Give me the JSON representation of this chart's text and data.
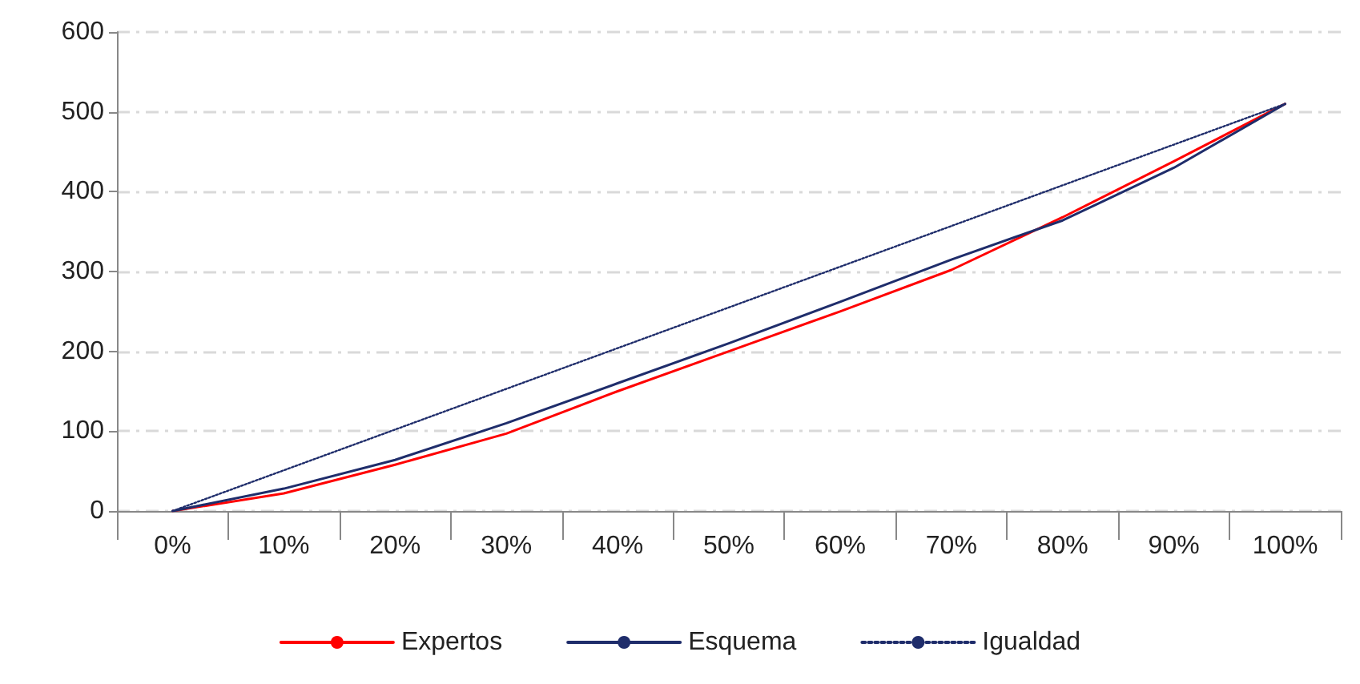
{
  "chart_data": {
    "type": "line",
    "categories": [
      "0%",
      "10%",
      "20%",
      "30%",
      "40%",
      "50%",
      "60%",
      "70%",
      "80%",
      "90%",
      "100%"
    ],
    "series": [
      {
        "name": "Expertos",
        "color": "#ff0000",
        "line_style": "solid",
        "values": [
          0,
          22,
          58,
          97,
          150,
          200,
          250,
          302,
          368,
          438,
          510
        ]
      },
      {
        "name": "Esquema",
        "color": "#1f2d6b",
        "line_style": "solid",
        "values": [
          0,
          28,
          64,
          110,
          160,
          210,
          262,
          315,
          364,
          430,
          510
        ]
      },
      {
        "name": "Igualdad",
        "color": "#1f2d6b",
        "line_style": "dotted",
        "values": [
          0,
          51,
          102,
          153,
          204,
          255,
          306,
          357,
          408,
          459,
          510
        ]
      }
    ],
    "ylim": [
      0,
      600
    ],
    "yticks": [
      0,
      100,
      200,
      300,
      400,
      500,
      600
    ],
    "grid": "y",
    "legend": "bottom",
    "marker": "none"
  }
}
